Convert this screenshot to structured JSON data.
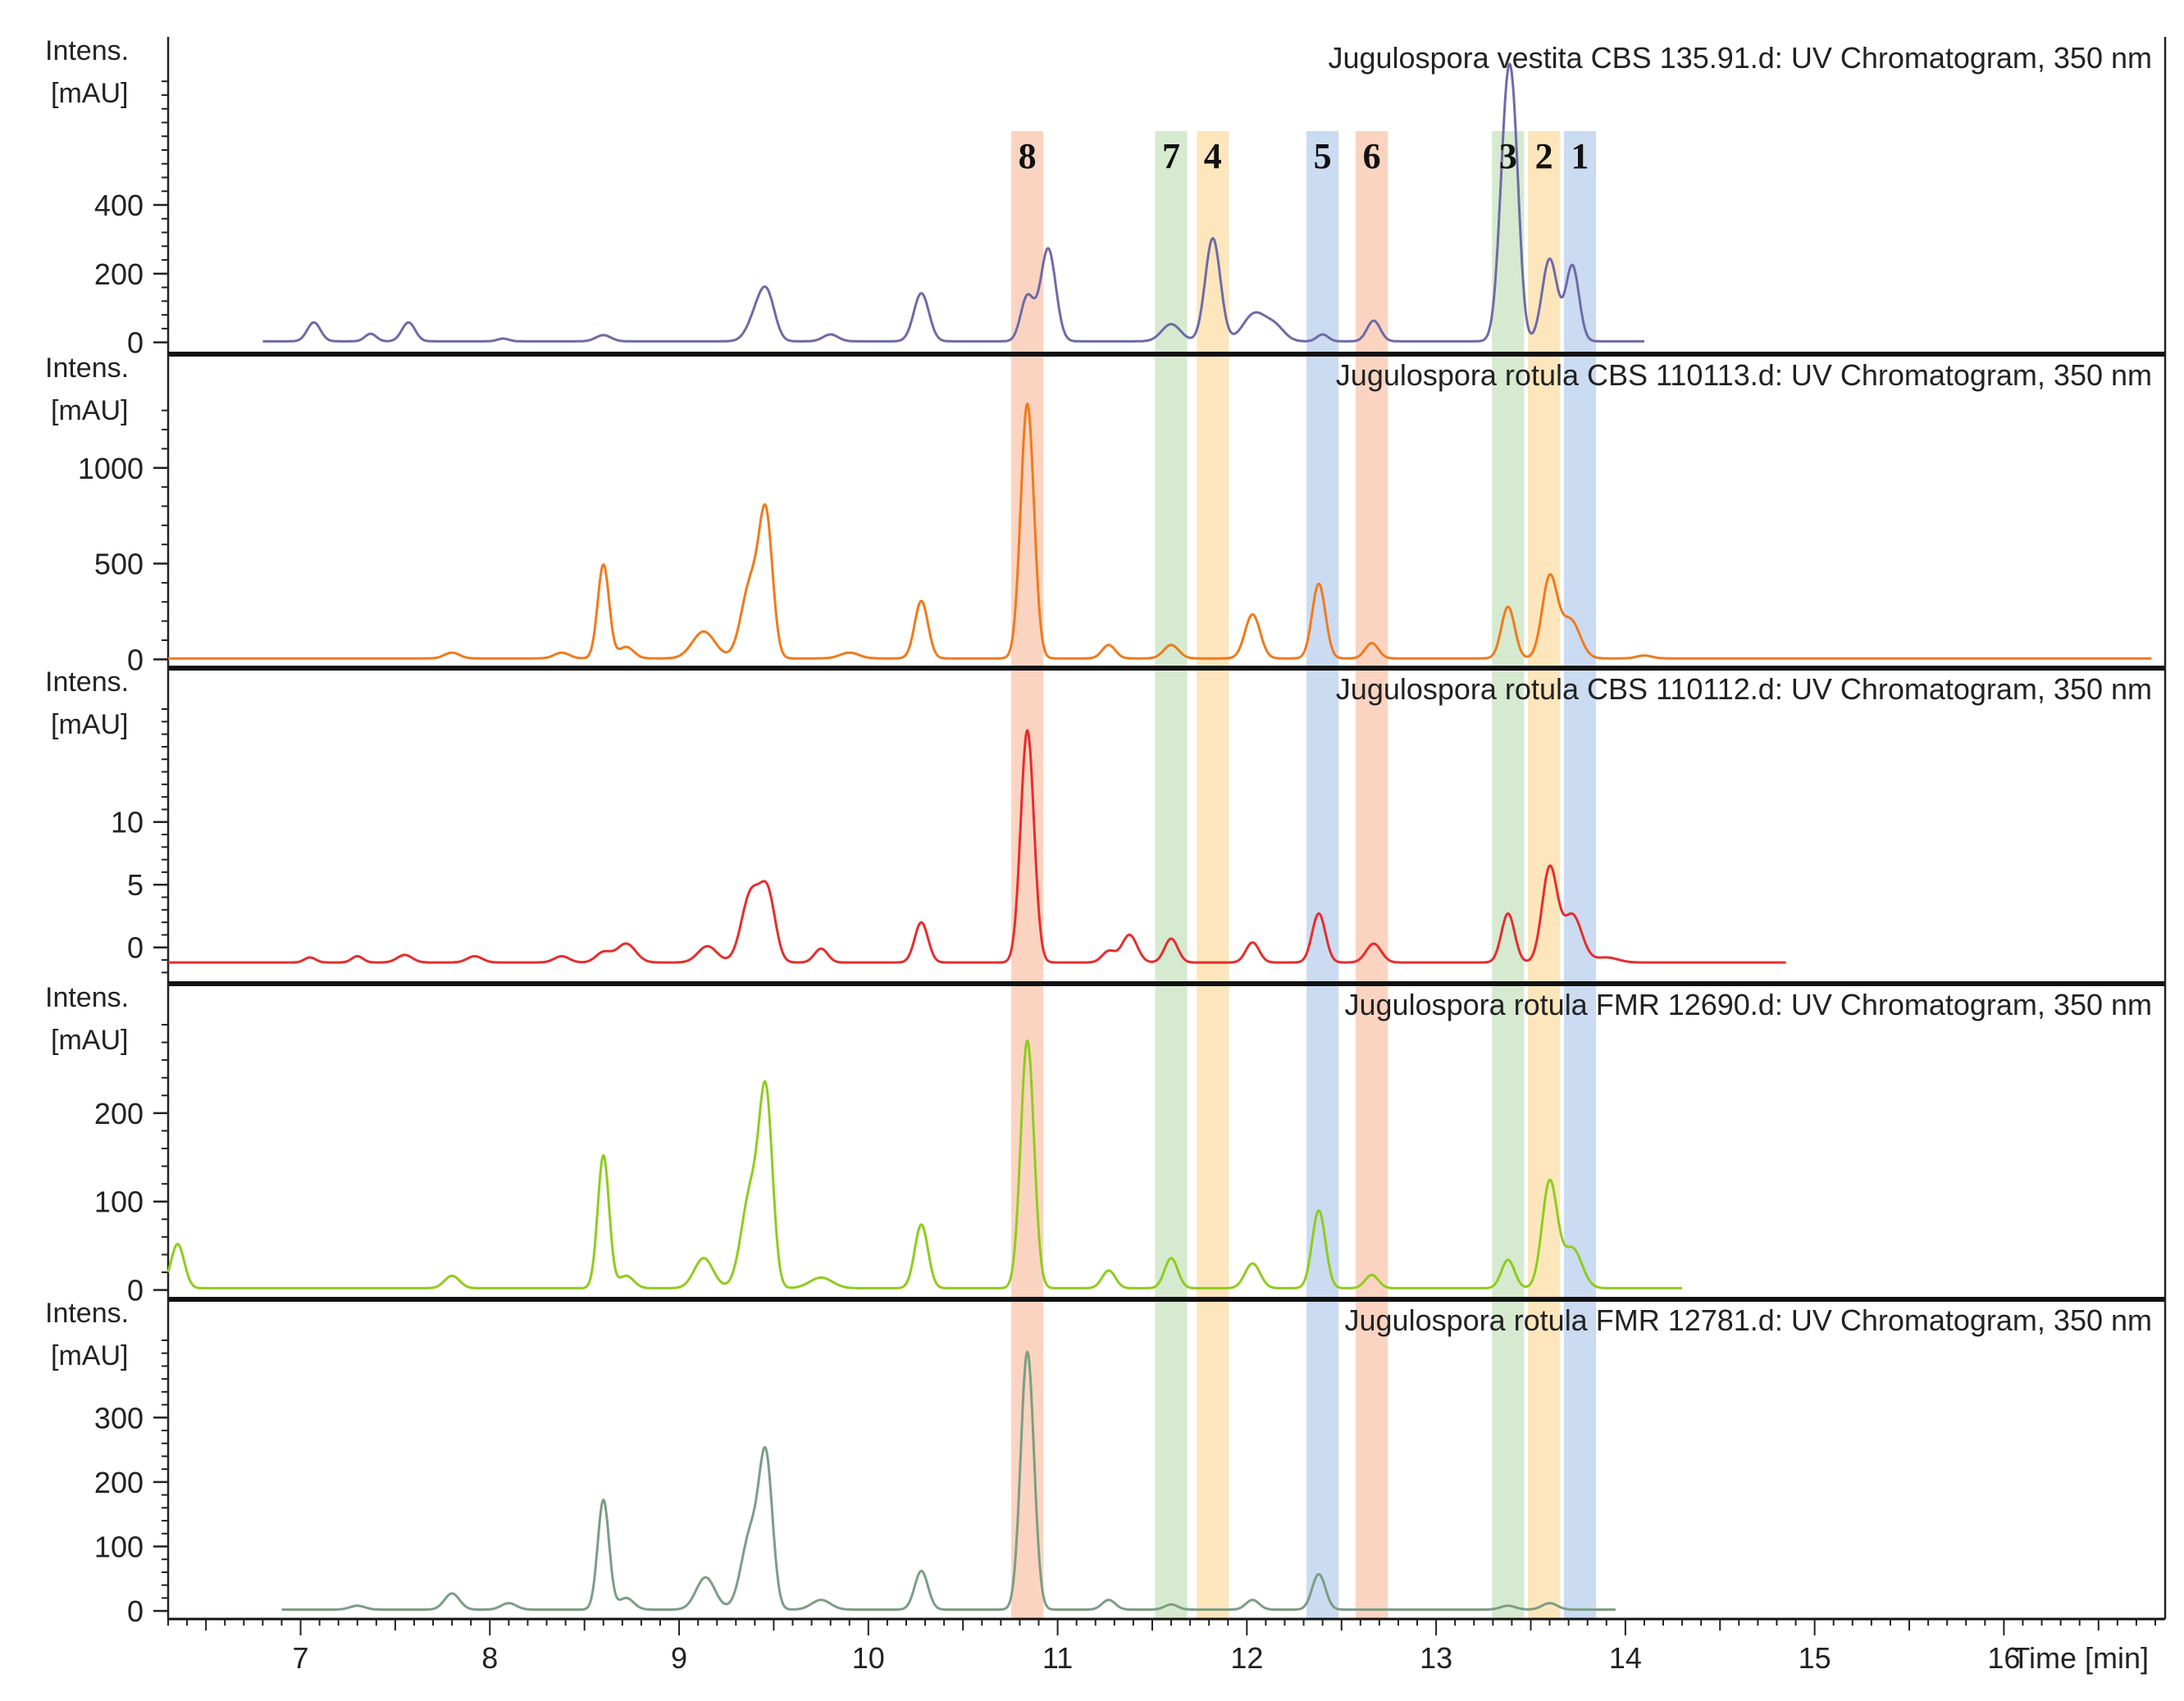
{
  "chart_data": {
    "type": "line",
    "x_axis": {
      "label": "Time [min]",
      "range": [
        6.3,
        16.8
      ],
      "ticks": [
        7,
        8,
        9,
        10,
        11,
        12,
        13,
        14,
        15,
        16
      ]
    },
    "y_label_line1": "Intens.",
    "y_label_line2": "[mAU]",
    "compound_bands": [
      {
        "label": "8",
        "center": 10.84,
        "color": "#f9cdb6"
      },
      {
        "label": "7",
        "center": 11.6,
        "color": "#cfe6c8"
      },
      {
        "label": "4",
        "center": 11.82,
        "color": "#fde2b0"
      },
      {
        "label": "5",
        "center": 12.4,
        "color": "#c2d5ee"
      },
      {
        "label": "6",
        "center": 12.66,
        "color": "#f9cdb6"
      },
      {
        "label": "3",
        "center": 13.38,
        "color": "#cfe6c8"
      },
      {
        "label": "2",
        "center": 13.57,
        "color": "#fde2b0"
      },
      {
        "label": "1",
        "center": 13.76,
        "color": "#c2d5ee"
      }
    ],
    "panels": [
      {
        "title": "Jugulospora vestita CBS 135.91.d: UV Chromatogram, 350 nm",
        "color": "#6e6aa8",
        "ylim": [
          -20,
          770
        ],
        "yticks": [
          0,
          200,
          400
        ],
        "baseline": 3,
        "x_start": 6.8,
        "x_end": 14.1,
        "peaks": [
          [
            7.07,
            55,
            0.035
          ],
          [
            7.37,
            22,
            0.03
          ],
          [
            7.57,
            55,
            0.035
          ],
          [
            8.07,
            8,
            0.03
          ],
          [
            8.6,
            18,
            0.04
          ],
          [
            9.42,
            90,
            0.05
          ],
          [
            9.47,
            95,
            0.04
          ],
          [
            9.8,
            20,
            0.04
          ],
          [
            10.28,
            140,
            0.04
          ],
          [
            10.84,
            130,
            0.035
          ],
          [
            10.95,
            270,
            0.04
          ],
          [
            11.6,
            50,
            0.05
          ],
          [
            11.82,
            300,
            0.04
          ],
          [
            12.04,
            80,
            0.06
          ],
          [
            12.15,
            40,
            0.05
          ],
          [
            12.4,
            20,
            0.03
          ],
          [
            12.67,
            60,
            0.035
          ],
          [
            13.38,
            720,
            0.04
          ],
          [
            13.42,
            180,
            0.03
          ],
          [
            13.6,
            240,
            0.04
          ],
          [
            13.72,
            220,
            0.035
          ]
        ]
      },
      {
        "title": "Jugulospora rotula CBS 110113.d: UV Chromatogram, 350 nm",
        "color": "#f07a1c",
        "ylim": [
          -20,
          1380
        ],
        "yticks": [
          0,
          500,
          1000
        ],
        "baseline": 5,
        "x_start": 6.3,
        "x_end": 16.78,
        "peaks": [
          [
            7.8,
            30,
            0.04
          ],
          [
            8.38,
            30,
            0.04
          ],
          [
            8.6,
            490,
            0.03
          ],
          [
            8.72,
            60,
            0.04
          ],
          [
            9.13,
            140,
            0.06
          ],
          [
            9.38,
            400,
            0.05
          ],
          [
            9.46,
            680,
            0.035
          ],
          [
            9.9,
            30,
            0.05
          ],
          [
            10.28,
            300,
            0.035
          ],
          [
            10.84,
            1330,
            0.035
          ],
          [
            11.27,
            70,
            0.035
          ],
          [
            11.6,
            70,
            0.04
          ],
          [
            12.03,
            230,
            0.04
          ],
          [
            12.38,
            390,
            0.035
          ],
          [
            12.66,
            80,
            0.035
          ],
          [
            13.38,
            270,
            0.035
          ],
          [
            13.6,
            420,
            0.04
          ],
          [
            13.71,
            200,
            0.05
          ],
          [
            14.1,
            15,
            0.04
          ]
        ]
      },
      {
        "title": "Jugulospora rotula CBS 110112.d: UV Chromatogram, 350 nm",
        "color": "#e62d2d",
        "ylim": [
          -2.5,
          19
        ],
        "yticks": [
          0,
          5,
          10
        ],
        "baseline": -1.2,
        "x_start": 6.3,
        "x_end": 14.85,
        "peaks": [
          [
            7.05,
            0.4,
            0.03
          ],
          [
            7.3,
            0.5,
            0.03
          ],
          [
            7.55,
            0.6,
            0.04
          ],
          [
            7.92,
            0.5,
            0.04
          ],
          [
            8.38,
            0.5,
            0.04
          ],
          [
            8.6,
            0.8,
            0.04
          ],
          [
            8.72,
            1.5,
            0.05
          ],
          [
            9.15,
            1.3,
            0.05
          ],
          [
            9.38,
            5.5,
            0.05
          ],
          [
            9.47,
            5.0,
            0.04
          ],
          [
            9.75,
            1.1,
            0.035
          ],
          [
            10.28,
            3.2,
            0.035
          ],
          [
            10.84,
            18.5,
            0.035
          ],
          [
            11.27,
            0.9,
            0.035
          ],
          [
            11.38,
            2.2,
            0.04
          ],
          [
            11.6,
            1.9,
            0.035
          ],
          [
            12.03,
            1.6,
            0.035
          ],
          [
            12.38,
            3.9,
            0.035
          ],
          [
            12.67,
            1.5,
            0.04
          ],
          [
            13.38,
            3.9,
            0.035
          ],
          [
            13.6,
            7.5,
            0.04
          ],
          [
            13.72,
            3.8,
            0.05
          ],
          [
            13.9,
            0.4,
            0.06
          ]
        ]
      },
      {
        "title": "Jugulospora rotula FMR 12690.d: UV Chromatogram, 350 nm",
        "color": "#8fcc1d",
        "ylim": [
          -5,
          300
        ],
        "yticks": [
          0,
          100,
          200
        ],
        "baseline": 2,
        "x_start": 6.3,
        "x_end": 14.3,
        "peaks": [
          [
            6.35,
            50,
            0.035
          ],
          [
            7.8,
            14,
            0.04
          ],
          [
            8.6,
            150,
            0.03
          ],
          [
            8.72,
            14,
            0.04
          ],
          [
            9.13,
            34,
            0.05
          ],
          [
            9.38,
            110,
            0.05
          ],
          [
            9.46,
            200,
            0.035
          ],
          [
            9.75,
            12,
            0.06
          ],
          [
            10.28,
            72,
            0.035
          ],
          [
            10.84,
            280,
            0.035
          ],
          [
            11.27,
            20,
            0.035
          ],
          [
            11.6,
            34,
            0.035
          ],
          [
            12.03,
            28,
            0.04
          ],
          [
            12.38,
            88,
            0.035
          ],
          [
            12.66,
            15,
            0.035
          ],
          [
            13.38,
            32,
            0.035
          ],
          [
            13.6,
            120,
            0.04
          ],
          [
            13.72,
            45,
            0.05
          ]
        ]
      },
      {
        "title": "Jugulospora rotula FMR 12781.d: UV Chromatogram, 350 nm",
        "color": "#7a9e84",
        "ylim": [
          -5,
          420
        ],
        "yticks": [
          0,
          100,
          200,
          300
        ],
        "baseline": 2,
        "x_start": 6.9,
        "x_end": 13.95,
        "peaks": [
          [
            7.3,
            6,
            0.04
          ],
          [
            7.8,
            25,
            0.04
          ],
          [
            8.1,
            10,
            0.04
          ],
          [
            8.6,
            170,
            0.03
          ],
          [
            8.72,
            18,
            0.04
          ],
          [
            9.14,
            50,
            0.05
          ],
          [
            9.38,
            120,
            0.05
          ],
          [
            9.46,
            215,
            0.035
          ],
          [
            9.75,
            15,
            0.05
          ],
          [
            10.28,
            60,
            0.035
          ],
          [
            10.84,
            400,
            0.035
          ],
          [
            11.27,
            15,
            0.035
          ],
          [
            11.6,
            8,
            0.035
          ],
          [
            12.03,
            15,
            0.035
          ],
          [
            12.38,
            55,
            0.035
          ],
          [
            13.38,
            6,
            0.04
          ],
          [
            13.6,
            10,
            0.04
          ]
        ]
      }
    ]
  }
}
